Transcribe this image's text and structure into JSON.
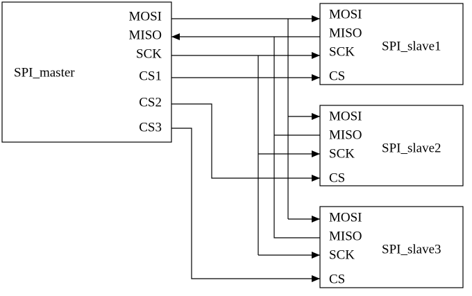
{
  "master": {
    "label": "SPI_master",
    "pins": [
      "MOSI",
      "MISO",
      "SCK",
      "CS1",
      "CS2",
      "CS3"
    ]
  },
  "slaves": [
    {
      "label": "SPI_slave1",
      "pins": [
        "MOSI",
        "MISO",
        "SCK",
        "CS"
      ]
    },
    {
      "label": "SPI_slave2",
      "pins": [
        "MOSI",
        "MISO",
        "SCK",
        "CS"
      ]
    },
    {
      "label": "SPI_slave3",
      "pins": [
        "MOSI",
        "MISO",
        "SCK",
        "CS"
      ]
    }
  ]
}
